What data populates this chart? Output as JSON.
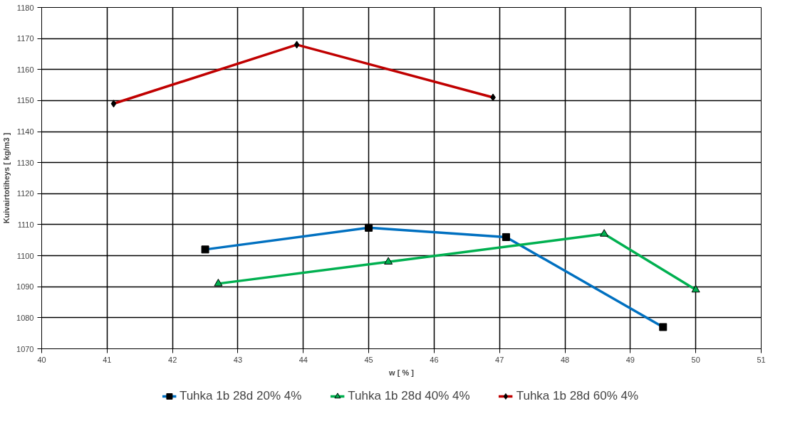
{
  "chart_data": {
    "type": "line",
    "xlabel": "w [ % ]",
    "ylabel": "Kuivairtotiheys [ kg/m3 ]",
    "xlim": [
      40,
      51
    ],
    "xticks": [
      40,
      41,
      42,
      43,
      44,
      45,
      46,
      47,
      48,
      49,
      50,
      51
    ],
    "ylim": [
      1070,
      1180
    ],
    "yticks": [
      1070,
      1080,
      1090,
      1100,
      1110,
      1120,
      1130,
      1140,
      1150,
      1160,
      1170,
      1180
    ],
    "grid": true,
    "legend": "bottom",
    "line_style": "solid",
    "series": [
      {
        "name": "Tuhka 1b 28d 20% 4%",
        "color": "#0070c0",
        "marker": "square",
        "x": [
          42.5,
          45,
          47.1,
          49.5
        ],
        "values": [
          1102,
          1109,
          1106,
          1077
        ]
      },
      {
        "name": "Tuhka 1b 28d 40% 4%",
        "color": "#00b050",
        "marker": "triangle",
        "x": [
          42.7,
          45.3,
          48.6,
          50
        ],
        "values": [
          1091,
          1098,
          1107,
          1089
        ]
      },
      {
        "name": "Tuhka 1b 28d 60% 4%",
        "color": "#c00000",
        "marker": "diamond",
        "x": [
          41.1,
          43.9,
          46.9
        ],
        "values": [
          1149,
          1168,
          1151
        ]
      }
    ]
  }
}
